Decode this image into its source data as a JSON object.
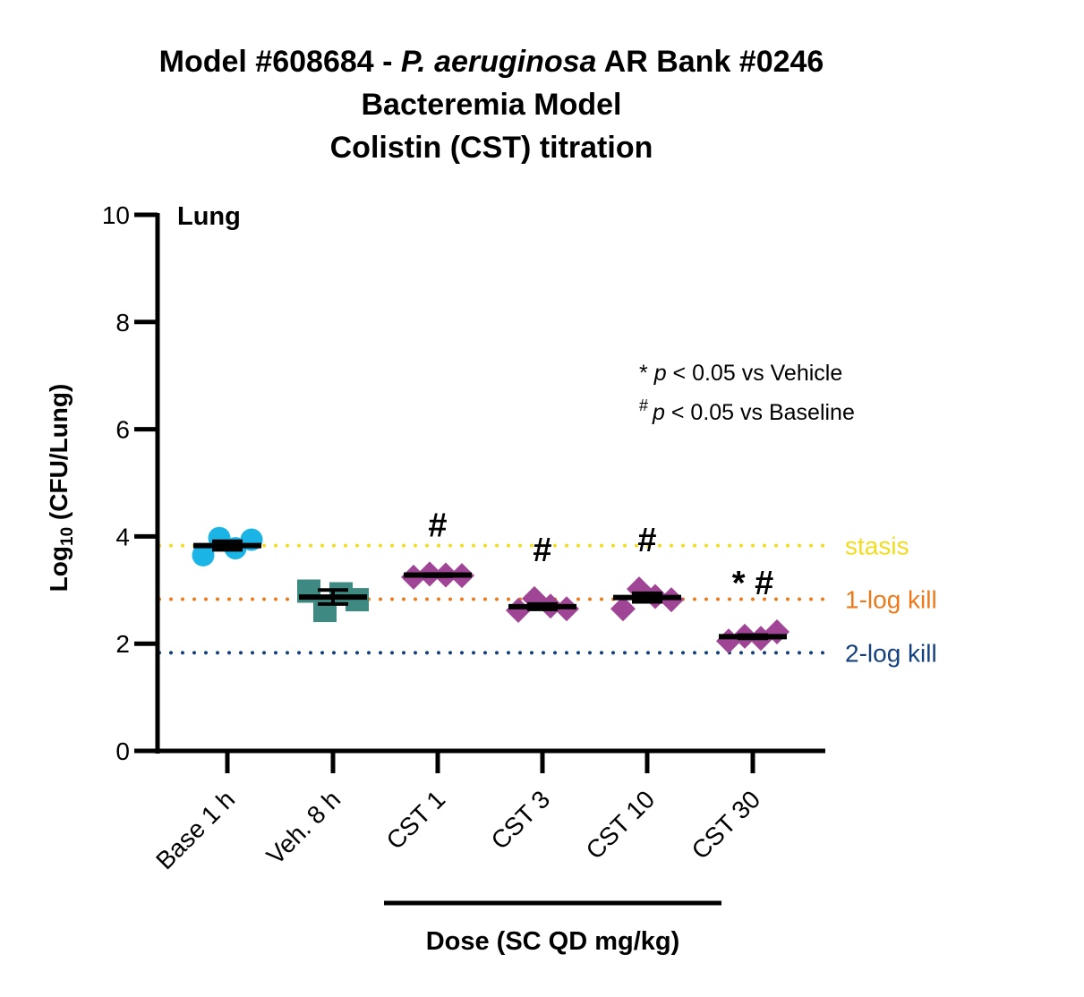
{
  "chart_data": {
    "type": "scatter",
    "title_lines": [
      {
        "before": "Model #608684 - ",
        "italic": "P. aeruginosa",
        "after": " AR Bank #0246"
      },
      {
        "before": "Bacteremia Model",
        "italic": "",
        "after": ""
      },
      {
        "before": "Colistin (CST) titration",
        "italic": "",
        "after": ""
      }
    ],
    "panel_label": "Lung",
    "ylabel_prefix": "Log",
    "ylabel_sub": "10",
    "ylabel_suffix": " (CFU/Lung)",
    "xlabel": "Dose (SC QD mg/kg)",
    "ylim": [
      0,
      10
    ],
    "yticks": [
      "0",
      "2",
      "4",
      "6",
      "8",
      "10"
    ],
    "categories": [
      "Base 1 h",
      "Veh. 8 h",
      "CST 1",
      "CST 3",
      "CST 10",
      "CST 30"
    ],
    "groups": [
      {
        "category": "Base 1 h",
        "marker": "circle",
        "color": "#1ab5e6",
        "points": [
          3.65,
          3.97,
          3.78,
          3.94
        ],
        "mean": 3.83,
        "sem": 0.08,
        "annotation": ""
      },
      {
        "category": "Veh. 8 h",
        "marker": "square",
        "color": "#3e8a82",
        "points": [
          2.98,
          2.62,
          2.93,
          2.82
        ],
        "mean": 2.87,
        "sem": 0.13,
        "annotation": ""
      },
      {
        "category": "CST 1",
        "marker": "diamond",
        "color": "#a04496",
        "points": [
          3.24,
          3.3,
          3.28,
          3.27
        ],
        "mean": 3.28,
        "sem": 0.02,
        "annotation": "#"
      },
      {
        "category": "CST 3",
        "marker": "diamond",
        "color": "#a04496",
        "points": [
          2.62,
          2.84,
          2.7,
          2.65
        ],
        "mean": 2.69,
        "sem": 0.05,
        "annotation": "#"
      },
      {
        "category": "CST 10",
        "marker": "diamond",
        "color": "#a04496",
        "points": [
          2.65,
          3.02,
          2.88,
          2.82
        ],
        "mean": 2.86,
        "sem": 0.08,
        "annotation": "#"
      },
      {
        "category": "CST 30",
        "marker": "diamond",
        "color": "#a04496",
        "points": [
          2.05,
          2.14,
          2.1,
          2.22
        ],
        "mean": 2.13,
        "sem": 0.03,
        "annotation": "* #"
      }
    ],
    "reference_lines": [
      {
        "label": "stasis",
        "value": 3.83,
        "color": "#f2dc1e"
      },
      {
        "label": "1-log kill",
        "value": 2.83,
        "color": "#ec7a1a"
      },
      {
        "label": "2-log kill",
        "value": 1.83,
        "color": "#14407e"
      }
    ],
    "legend": [
      {
        "symbol": "*",
        "italic": "p",
        "text": " < 0.05 vs Vehicle"
      },
      {
        "symbol": "#",
        "italic": "p",
        "text": " < 0.05 vs Baseline"
      }
    ],
    "dose_bracket_categories": [
      "CST 1",
      "CST 30"
    ],
    "grid": false
  }
}
